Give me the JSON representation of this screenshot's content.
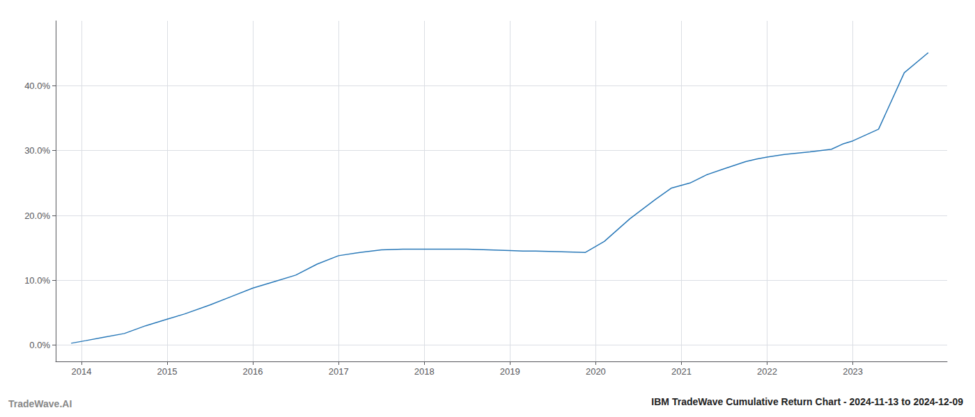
{
  "chart_data": {
    "type": "line",
    "title": "IBM TradeWave Cumulative Return Chart - 2024-11-13 to 2024-12-09",
    "annotations": [
      "TradeWave.AI"
    ],
    "x": [
      2013.88,
      2014.05,
      2014.25,
      2014.5,
      2014.75,
      2015.0,
      2015.2,
      2015.5,
      2015.75,
      2016.0,
      2016.25,
      2016.5,
      2016.75,
      2017.0,
      2017.25,
      2017.5,
      2017.75,
      2018.0,
      2018.25,
      2018.5,
      2018.75,
      2019.0,
      2019.15,
      2019.3,
      2019.6,
      2019.88,
      2020.1,
      2020.4,
      2020.7,
      2020.88,
      2021.1,
      2021.3,
      2021.5,
      2021.75,
      2021.88,
      2022.0,
      2022.2,
      2022.5,
      2022.75,
      2022.88,
      2023.0,
      2023.3,
      2023.6,
      2023.88
    ],
    "values": [
      0.003,
      0.007,
      0.012,
      0.018,
      0.03,
      0.04,
      0.048,
      0.062,
      0.075,
      0.088,
      0.098,
      0.108,
      0.125,
      0.138,
      0.143,
      0.147,
      0.148,
      0.148,
      0.148,
      0.148,
      0.147,
      0.146,
      0.145,
      0.145,
      0.144,
      0.143,
      0.16,
      0.195,
      0.225,
      0.242,
      0.25,
      0.263,
      0.272,
      0.283,
      0.287,
      0.29,
      0.294,
      0.298,
      0.302,
      0.31,
      0.315,
      0.333,
      0.42,
      0.451
    ],
    "color": "#2878b8",
    "xlim": [
      2013.7,
      2024.1
    ],
    "ylim": [
      -0.025,
      0.5
    ],
    "xticks": [
      2014,
      2015,
      2016,
      2017,
      2018,
      2019,
      2020,
      2021,
      2022,
      2023
    ],
    "yticks": [
      {
        "value": 0,
        "label": "0.0%"
      },
      {
        "value": 0.1,
        "label": "10.0%"
      },
      {
        "value": 0.2,
        "label": "20.0%"
      },
      {
        "value": 0.3,
        "label": "30.0%"
      },
      {
        "value": 0.4,
        "label": "40.0%"
      }
    ],
    "grid": true
  }
}
